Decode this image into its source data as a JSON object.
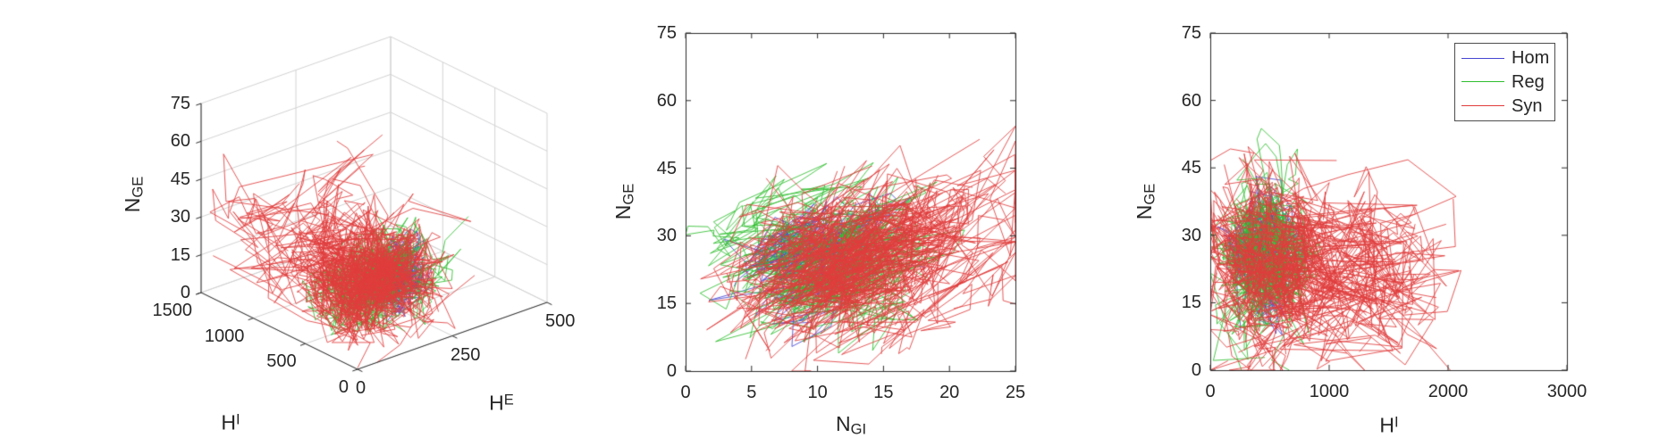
{
  "colors": {
    "hom": "#4646d2",
    "reg": "#2fbe2f",
    "syn": "#e13c3c",
    "grid": "#d2d2d2",
    "box": "#2a2a2a",
    "text": "#262626",
    "background": "#ffffff"
  },
  "legend": {
    "entries": [
      {
        "label": "Hom",
        "color": "hom"
      },
      {
        "label": "Reg",
        "color": "reg"
      },
      {
        "label": "Syn",
        "color": "syn"
      }
    ]
  },
  "note": "Three MATLAB-style panels of hundreds of overlapping jagged line trajectories in blue (Hom), green (Reg) and red (Syn); individual vertices are not resolvable, so each series is described statistically by cluster center and spread used to regenerate an equivalent cloud.",
  "chart_data": [
    {
      "id": "panel-3d",
      "type": "line3d",
      "xlabel": {
        "base": "H",
        "sup": "I"
      },
      "ylabel": {
        "base": "H",
        "sup": "E"
      },
      "zlabel": {
        "base": "N",
        "sub": "GE"
      },
      "xlim": [
        0,
        1500
      ],
      "ylim": [
        0,
        500
      ],
      "zlim": [
        0,
        75
      ],
      "xticks": [
        0,
        500,
        1000,
        1500
      ],
      "yticks": [
        0,
        250,
        500
      ],
      "zticks": [
        0,
        15,
        30,
        45,
        60,
        75
      ],
      "view": "default 3-D view, gray grid on back walls and floor",
      "series": [
        {
          "name": "Hom",
          "color": "hom",
          "trajectories": 15,
          "steps": 30,
          "center": [
            260,
            190,
            22
          ],
          "center_spread": [
            60,
            35,
            4
          ],
          "point_spread": [
            100,
            50,
            6
          ],
          "corr": [
            0.4,
            0.2
          ],
          "seed": 101
        },
        {
          "name": "Reg",
          "color": "reg",
          "trajectories": 25,
          "steps": 30,
          "center": [
            300,
            125,
            23
          ],
          "center_spread": [
            90,
            45,
            5
          ],
          "point_spread": [
            160,
            65,
            8
          ],
          "corr": [
            0.4,
            0.25
          ],
          "seed": 202
        },
        {
          "name": "Syn",
          "color": "syn",
          "trajectories": 40,
          "steps": 30,
          "center": [
            380,
            140,
            22
          ],
          "center_spread": [
            160,
            60,
            6
          ],
          "point_spread": [
            260,
            95,
            10
          ],
          "corr": [
            0.45,
            0.3
          ],
          "tail_fraction": 0.3,
          "tail_scale": [
            1.8,
            1.8,
            1.3
          ],
          "seed": 303
        }
      ]
    },
    {
      "id": "panel-middle",
      "type": "line",
      "xlabel": {
        "base": "N",
        "sub": "GI"
      },
      "ylabel": {
        "base": "N",
        "sub": "GE"
      },
      "xlim": [
        0,
        25
      ],
      "ylim": [
        0,
        75
      ],
      "xticks": [
        0,
        5,
        10,
        15,
        20,
        25
      ],
      "yticks": [
        0,
        15,
        30,
        45,
        60,
        75
      ],
      "series": [
        {
          "name": "Hom",
          "color": "hom",
          "trajectories": 15,
          "steps": 28,
          "center": [
            9.5,
            27
          ],
          "center_spread": [
            2.2,
            4.5
          ],
          "point_spread": [
            3.0,
            6.5
          ],
          "corr": [
            0.55
          ],
          "seed": 111
        },
        {
          "name": "Reg",
          "color": "reg",
          "trajectories": 25,
          "steps": 28,
          "center": [
            11,
            25
          ],
          "center_spread": [
            2.8,
            5.5
          ],
          "point_spread": [
            3.8,
            8
          ],
          "corr": [
            0.5
          ],
          "seed": 222
        },
        {
          "name": "Syn",
          "color": "syn",
          "trajectories": 40,
          "steps": 28,
          "center": [
            11.5,
            24
          ],
          "center_spread": [
            3.2,
            7
          ],
          "point_spread": [
            4.8,
            10.5
          ],
          "corr": [
            0.5
          ],
          "tail_fraction": 0.15,
          "tail_scale": [
            1.4,
            1.5
          ],
          "seed": 333
        }
      ]
    },
    {
      "id": "panel-right",
      "type": "line",
      "xlabel": {
        "base": "H",
        "sup": "I"
      },
      "ylabel": {
        "base": "N",
        "sub": "GE"
      },
      "xlim": [
        0,
        3000
      ],
      "ylim": [
        0,
        75
      ],
      "xticks": [
        0,
        1000,
        2000,
        3000
      ],
      "yticks": [
        0,
        15,
        30,
        45,
        60,
        75
      ],
      "legend_position": "northeast",
      "series": [
        {
          "name": "Hom",
          "color": "hom",
          "trajectories": 15,
          "steps": 28,
          "center": [
            430,
            27
          ],
          "center_spread": [
            80,
            4.5
          ],
          "point_spread": [
            150,
            6.5
          ],
          "corr": [
            0
          ],
          "seed": 11
        },
        {
          "name": "Reg",
          "color": "reg",
          "trajectories": 25,
          "steps": 28,
          "center": [
            460,
            26
          ],
          "center_spread": [
            120,
            5.5
          ],
          "point_spread": [
            220,
            8
          ],
          "corr": [
            0
          ],
          "seed": 22
        },
        {
          "name": "Syn",
          "color": "syn",
          "trajectories": 40,
          "steps": 28,
          "center": [
            500,
            24
          ],
          "center_spread": [
            200,
            7
          ],
          "point_spread": [
            300,
            10.5
          ],
          "corr": [
            0
          ],
          "tail_fraction": 0.28,
          "tail_scale": [
            1.8,
            1.1
          ],
          "seed": 33
        }
      ]
    }
  ]
}
